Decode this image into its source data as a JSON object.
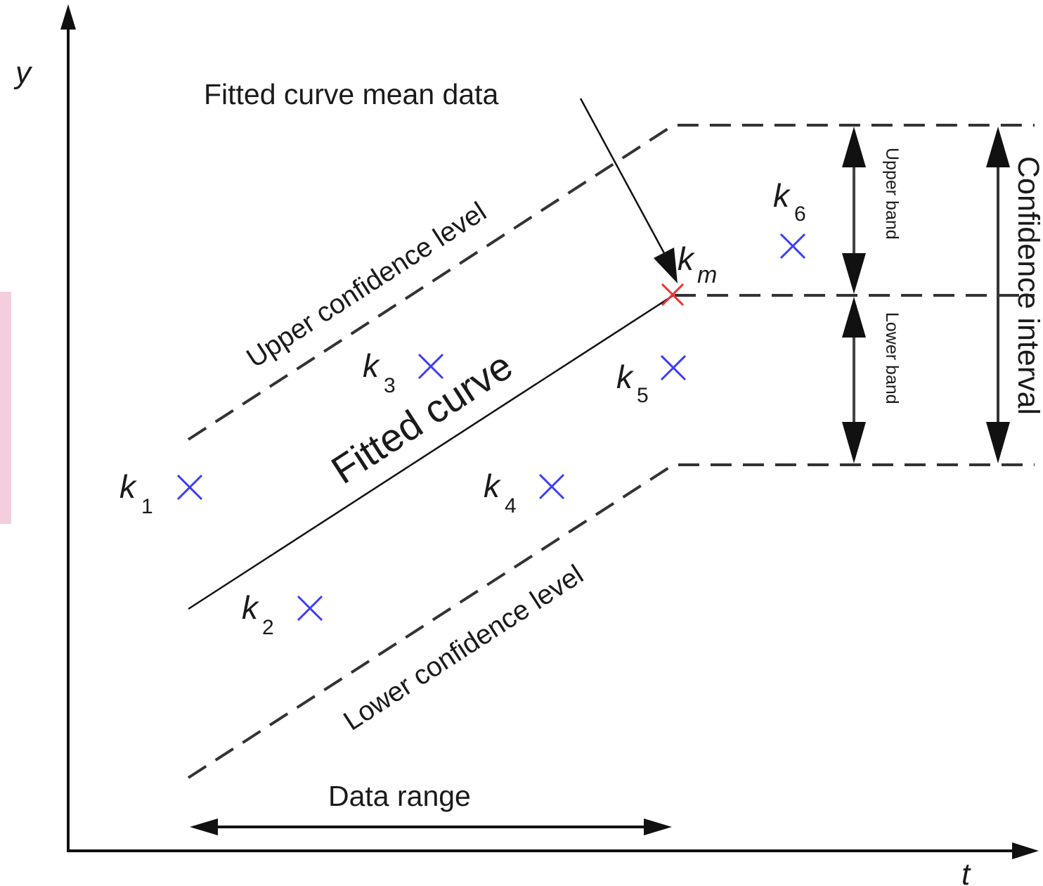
{
  "axes": {
    "y_label": "y",
    "x_label": "t"
  },
  "labels": {
    "fitted_curve_mean_data": "Fitted curve mean data",
    "upper_confidence_level": "Upper confidence level",
    "lower_confidence_level": "Lower confidence level",
    "fitted_curve": "Fitted curve",
    "upper_band": "Upper band",
    "lower_band": "Lower band",
    "confidence_interval": "Confidence interval",
    "data_range": "Data range"
  },
  "points": [
    {
      "letter": "k",
      "sub": "1",
      "color": "#3b3bff"
    },
    {
      "letter": "k",
      "sub": "2",
      "color": "#3b3bff"
    },
    {
      "letter": "k",
      "sub": "3",
      "color": "#3b3bff"
    },
    {
      "letter": "k",
      "sub": "4",
      "color": "#3b3bff"
    },
    {
      "letter": "k",
      "sub": "5",
      "color": "#3b3bff"
    },
    {
      "letter": "k",
      "sub": "6",
      "color": "#3b3bff"
    },
    {
      "letter": "k",
      "sub": "m",
      "color": "#ff2a2a"
    }
  ],
  "colors": {
    "axis": "#111111",
    "dashed_lines": "#333333",
    "fitted_line": "#111111",
    "point_marker": "#3b3bff",
    "mean_marker": "#ff2a2a",
    "left_edge_tint": "#f2cede"
  }
}
